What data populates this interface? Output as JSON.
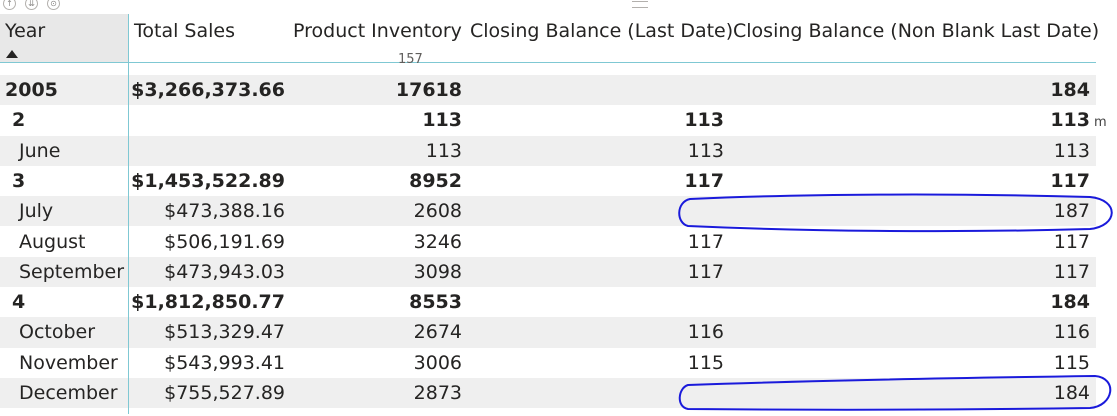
{
  "toolbar": {
    "icons": [
      "drill-up-icon",
      "expand-all-icon",
      "drill-mode-icon"
    ]
  },
  "table": {
    "headers": {
      "year": "Year",
      "total_sales": "Total Sales",
      "product_inventory": "Product Inventory",
      "closing_balance_last_date": "Closing Balance (Last Date)",
      "closing_balance_non_blank": "Closing Balance (Non Blank Last Date)"
    },
    "sort": "ascending",
    "partial_value": "157",
    "rows": [
      {
        "label": "2005",
        "level": "year",
        "total": true,
        "shade": true,
        "sales": "$3,266,373.66",
        "inventory": "17618",
        "cb_last": "",
        "cb_nonblank": "184"
      },
      {
        "label": "2",
        "level": "quarter",
        "total": true,
        "shade": false,
        "sales": "",
        "inventory": "113",
        "cb_last": "113",
        "cb_nonblank": "113"
      },
      {
        "label": "June",
        "level": "month",
        "total": false,
        "shade": true,
        "sales": "",
        "inventory": "113",
        "cb_last": "113",
        "cb_nonblank": "113"
      },
      {
        "label": "3",
        "level": "quarter",
        "total": true,
        "shade": false,
        "sales": "$1,453,522.89",
        "inventory": "8952",
        "cb_last": "117",
        "cb_nonblank": "117"
      },
      {
        "label": "July",
        "level": "month",
        "total": false,
        "shade": true,
        "sales": "$473,388.16",
        "inventory": "2608",
        "cb_last": "",
        "cb_nonblank": "187"
      },
      {
        "label": "August",
        "level": "month",
        "total": false,
        "shade": false,
        "sales": "$506,191.69",
        "inventory": "3246",
        "cb_last": "117",
        "cb_nonblank": "117"
      },
      {
        "label": "September",
        "level": "month",
        "total": false,
        "shade": true,
        "sales": "$473,943.03",
        "inventory": "3098",
        "cb_last": "117",
        "cb_nonblank": "117"
      },
      {
        "label": "4",
        "level": "quarter",
        "total": true,
        "shade": false,
        "sales": "$1,812,850.77",
        "inventory": "8553",
        "cb_last": "",
        "cb_nonblank": "184"
      },
      {
        "label": "October",
        "level": "month",
        "total": false,
        "shade": true,
        "sales": "$513,329.47",
        "inventory": "2674",
        "cb_last": "116",
        "cb_nonblank": "116"
      },
      {
        "label": "November",
        "level": "month",
        "total": false,
        "shade": false,
        "sales": "$543,993.41",
        "inventory": "3006",
        "cb_last": "115",
        "cb_nonblank": "115"
      },
      {
        "label": "December",
        "level": "month",
        "total": false,
        "shade": true,
        "sales": "$755,527.89",
        "inventory": "2873",
        "cb_last": "",
        "cb_nonblank": "184"
      }
    ],
    "stray_mark": "m"
  },
  "colors": {
    "accent_line": "#7fc8d3",
    "row_shade": "#efefef",
    "annotation_ink": "#1a1adb"
  }
}
